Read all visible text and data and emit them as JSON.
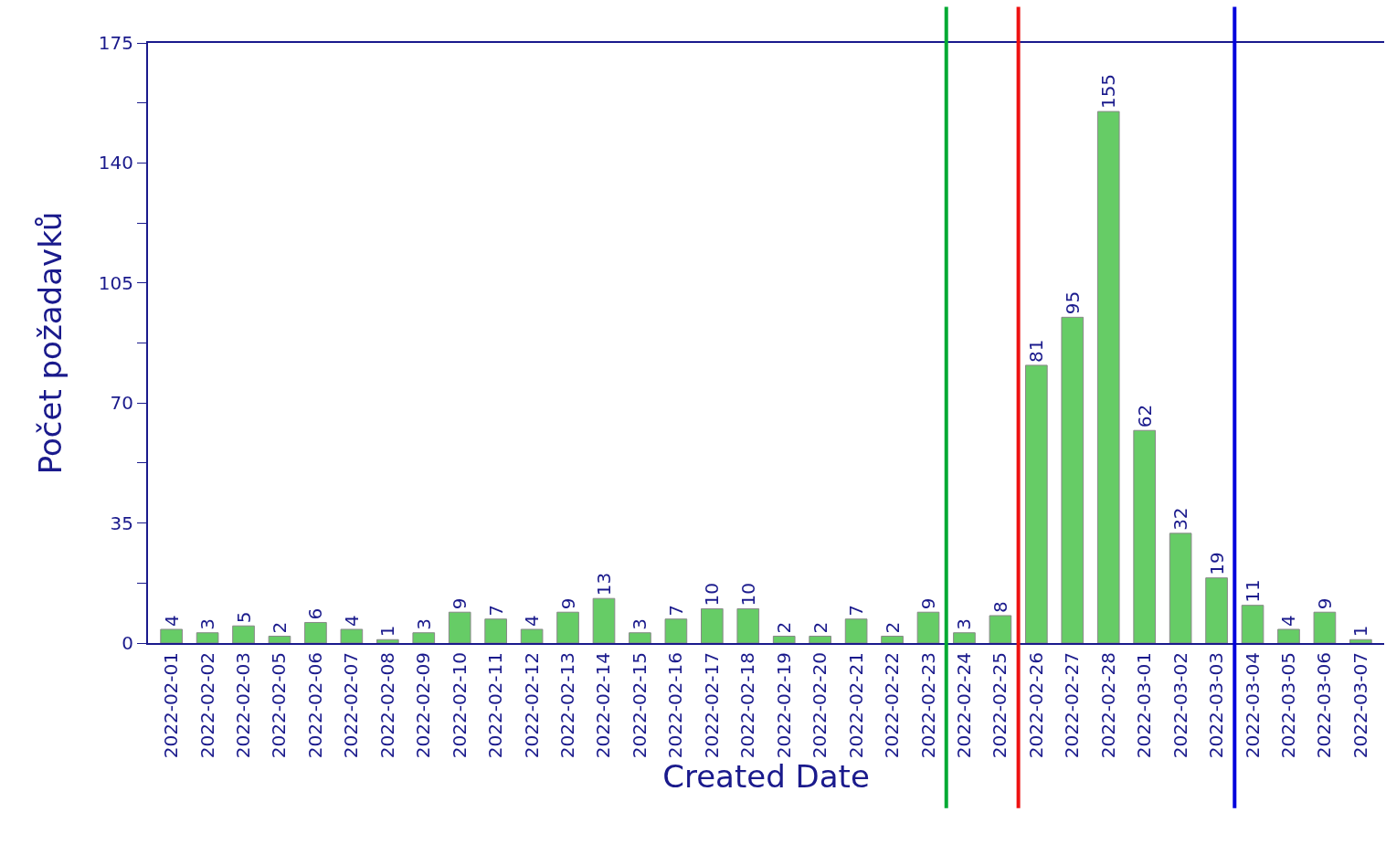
{
  "chart_data": {
    "type": "bar",
    "xlabel": "Created Date",
    "ylabel": "Počet požadavků",
    "categories": [
      "2022-02-01",
      "2022-02-02",
      "2022-02-03",
      "2022-02-05",
      "2022-02-06",
      "2022-02-07",
      "2022-02-08",
      "2022-02-09",
      "2022-02-10",
      "2022-02-11",
      "2022-02-12",
      "2022-02-13",
      "2022-02-14",
      "2022-02-15",
      "2022-02-16",
      "2022-02-17",
      "2022-02-18",
      "2022-02-19",
      "2022-02-20",
      "2022-02-21",
      "2022-02-22",
      "2022-02-23",
      "2022-02-24",
      "2022-02-25",
      "2022-02-26",
      "2022-02-27",
      "2022-02-28",
      "2022-03-01",
      "2022-03-02",
      "2022-03-03",
      "2022-03-04",
      "2022-03-05",
      "2022-03-06",
      "2022-03-07"
    ],
    "values": [
      4,
      3,
      5,
      2,
      6,
      4,
      1,
      3,
      9,
      7,
      4,
      9,
      13,
      3,
      7,
      10,
      10,
      2,
      2,
      7,
      2,
      9,
      3,
      8,
      81,
      95,
      155,
      62,
      32,
      19,
      11,
      4,
      9,
      1
    ],
    "color": "#66cc66",
    "data_labels": true,
    "grid": false,
    "legend": false,
    "ylim": [
      0,
      175
    ],
    "yticks": [
      0,
      {
        "value": 17.5,
        "label": null
      },
      35,
      {
        "value": 52.5,
        "label": null
      },
      70,
      {
        "value": 87.5,
        "label": null
      },
      105,
      {
        "value": 122.5,
        "label": null
      },
      140,
      {
        "value": 157.5,
        "label": null
      },
      175
    ],
    "ref_lines": [
      {
        "axis": "x",
        "value": "2022-02-24",
        "color": "#00aa33"
      },
      {
        "axis": "x",
        "value": "2022-02-26",
        "color": "#ee1111"
      },
      {
        "axis": "x",
        "value": "2022-03-04",
        "color": "#0000dd"
      }
    ]
  }
}
